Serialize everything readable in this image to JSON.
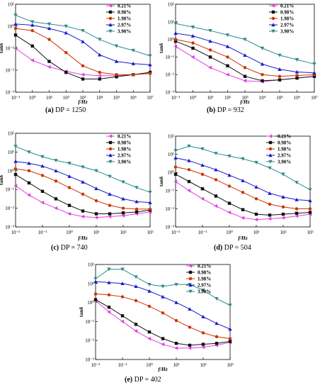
{
  "chart_data": [
    {
      "type": "line",
      "caption_letter": "(a)",
      "caption_text": "DP = 1250",
      "xlabel": "f/Hz",
      "ylabel": "tanδ",
      "x_ticks": [
        "10⁻¹",
        "10⁰",
        "10¹",
        "10²",
        "10³",
        "10⁴",
        "10⁵",
        "10⁶",
        "10⁷"
      ],
      "xlim_log10": [
        -1,
        7
      ],
      "x_tick_log10": [
        -1,
        0,
        1,
        2,
        3,
        4,
        5,
        6,
        7
      ],
      "y_ticks": [
        "10⁻³",
        "10⁻²",
        "10⁻¹",
        "10⁰",
        "10¹"
      ],
      "ylim_log10": [
        -3,
        1
      ],
      "y_tick_log10": [
        -3,
        -2,
        -1,
        0,
        1
      ],
      "series": [
        {
          "name": "0.21%",
          "color": "#e040e0",
          "marker": "triangle-left",
          "log10_x": [
            -1,
            0,
            1,
            2,
            3,
            4,
            5,
            6,
            7
          ],
          "log10_y": [
            -1.0,
            -1.55,
            -1.85,
            -2.05,
            -2.2,
            -2.25,
            -2.25,
            -2.2,
            -2.1
          ]
        },
        {
          "name": "0.98%",
          "color": "#111111",
          "marker": "square",
          "log10_x": [
            -1,
            0,
            1,
            2,
            3,
            4,
            5,
            6,
            7
          ],
          "log10_y": [
            -0.4,
            -0.9,
            -1.6,
            -2.1,
            -2.4,
            -2.4,
            -2.3,
            -2.2,
            -2.1
          ]
        },
        {
          "name": "1.98%",
          "color": "#cc3300",
          "marker": "circle",
          "log10_x": [
            -1,
            0,
            1,
            2,
            3,
            4,
            5,
            6,
            7
          ],
          "log10_y": [
            -0.1,
            -0.2,
            -0.6,
            -1.2,
            -1.8,
            -2.1,
            -2.2,
            -2.2,
            -2.15
          ]
        },
        {
          "name": "2.97%",
          "color": "#1a1acc",
          "marker": "triangle-up",
          "log10_x": [
            -1,
            0,
            1,
            2,
            3,
            4,
            5,
            6,
            7
          ],
          "log10_y": [
            0.1,
            0.05,
            -0.1,
            -0.3,
            -0.7,
            -1.3,
            -1.6,
            -1.7,
            -1.75
          ]
        },
        {
          "name": "3.90%",
          "color": "#2e8b8b",
          "marker": "triangle-down",
          "log10_x": [
            -1,
            0,
            1,
            2,
            3,
            4,
            5,
            6,
            7
          ],
          "log10_y": [
            0.5,
            0.2,
            0.1,
            0.0,
            -0.2,
            -0.6,
            -0.9,
            -1.1,
            -1.35
          ]
        }
      ]
    },
    {
      "type": "line",
      "caption_letter": "(b)",
      "caption_text": "DP = 932",
      "xlabel": "f/Hz",
      "ylabel": "tanδ",
      "x_ticks": [
        "10⁻¹",
        "10⁰",
        "10¹",
        "10²",
        "10³",
        "10⁴",
        "10⁵",
        "10⁶",
        "10⁷"
      ],
      "xlim_log10": [
        -1,
        7
      ],
      "x_tick_log10": [
        -1,
        0,
        1,
        2,
        3,
        4,
        5,
        6,
        7
      ],
      "y_ticks": [
        "10⁻³",
        "10⁻²",
        "10⁻¹",
        "10⁰",
        "10¹",
        "10²"
      ],
      "ylim_log10": [
        -3,
        2
      ],
      "y_tick_log10": [
        -3,
        -2,
        -1,
        0,
        1,
        2
      ],
      "series": [
        {
          "name": "0.21%",
          "color": "#e040e0",
          "marker": "triangle-left",
          "log10_x": [
            -1,
            0,
            1,
            2,
            3,
            4,
            5,
            6,
            7
          ],
          "log10_y": [
            -0.4,
            -1.0,
            -1.6,
            -2.0,
            -2.35,
            -2.4,
            -2.3,
            -2.2,
            -2.1
          ]
        },
        {
          "name": "0.98%",
          "color": "#111111",
          "marker": "square",
          "log10_x": [
            -1,
            0,
            1,
            2,
            3,
            4,
            5,
            6,
            7
          ],
          "log10_y": [
            -0.1,
            -0.5,
            -1.0,
            -1.5,
            -2.1,
            -2.35,
            -2.3,
            -2.2,
            -2.1
          ]
        },
        {
          "name": "1.98%",
          "color": "#cc3300",
          "marker": "circle",
          "log10_x": [
            -1,
            0,
            1,
            2,
            3,
            4,
            5,
            6,
            7
          ],
          "log10_y": [
            0.0,
            -0.2,
            -0.6,
            -1.0,
            -1.6,
            -2.0,
            -2.1,
            -2.05,
            -2.0
          ]
        },
        {
          "name": "2.97%",
          "color": "#1a1acc",
          "marker": "triangle-up",
          "log10_x": [
            -1,
            0,
            1,
            2,
            3,
            4,
            5,
            6,
            7
          ],
          "log10_y": [
            0.35,
            0.2,
            -0.1,
            -0.4,
            -0.9,
            -1.4,
            -1.7,
            -1.85,
            -1.9
          ]
        },
        {
          "name": "3.90%",
          "color": "#2e8b8b",
          "marker": "triangle-down",
          "log10_x": [
            -1,
            0,
            1,
            2,
            3,
            4,
            5,
            6,
            7
          ],
          "log10_y": [
            0.9,
            0.7,
            0.5,
            0.25,
            0.0,
            -0.5,
            -0.9,
            -1.15,
            -1.4
          ]
        }
      ]
    },
    {
      "type": "line",
      "caption_letter": "(c)",
      "caption_text": "DP = 740",
      "xlabel": "f/Hz",
      "ylabel": "tanδ",
      "x_ticks": [
        "10⁻²",
        "10⁻¹",
        "10⁰",
        "10¹",
        "10²",
        "10³"
      ],
      "xlim_log10": [
        -2,
        3
      ],
      "x_tick_log10": [
        -2,
        -1,
        0,
        1,
        2,
        3
      ],
      "y_ticks": [
        "10⁻³",
        "10⁻²",
        "10⁻¹",
        "10⁰",
        "10¹",
        "10²"
      ],
      "ylim_log10": [
        -3,
        2
      ],
      "y_tick_log10": [
        -3,
        -2,
        -1,
        0,
        1,
        2
      ],
      "series": [
        {
          "name": "0.21%",
          "color": "#e040e0",
          "marker": "triangle-left",
          "log10_x": [
            -2,
            -1.5,
            -1,
            -0.5,
            0,
            0.5,
            1,
            1.5,
            2,
            2.5,
            3
          ],
          "log10_y": [
            -0.8,
            -1.3,
            -1.7,
            -2.0,
            -2.3,
            -2.45,
            -2.5,
            -2.45,
            -2.4,
            -2.3,
            -2.2
          ]
        },
        {
          "name": "0.98%",
          "color": "#111111",
          "marker": "square",
          "log10_x": [
            -2,
            -1.5,
            -1,
            -0.5,
            0,
            0.5,
            1,
            1.5,
            2,
            2.5,
            3
          ],
          "log10_y": [
            -0.2,
            -0.65,
            -1.1,
            -1.5,
            -1.85,
            -2.15,
            -2.3,
            -2.3,
            -2.25,
            -2.2,
            -2.1
          ]
        },
        {
          "name": "1.98%",
          "color": "#cc3300",
          "marker": "circle",
          "log10_x": [
            -2,
            -1.5,
            -1,
            -0.5,
            0,
            0.5,
            1,
            1.5,
            2,
            2.5,
            3
          ],
          "log10_y": [
            0.1,
            0.0,
            -0.25,
            -0.55,
            -0.9,
            -1.25,
            -1.6,
            -1.85,
            -2.0,
            -2.05,
            -2.05
          ]
        },
        {
          "name": "2.97%",
          "color": "#1a1acc",
          "marker": "triangle-up",
          "log10_x": [
            -2,
            -1.5,
            -1,
            -0.5,
            0,
            0.5,
            1,
            1.5,
            2,
            2.5,
            3
          ],
          "log10_y": [
            0.5,
            0.4,
            0.25,
            0.0,
            -0.3,
            -0.6,
            -0.95,
            -1.25,
            -1.5,
            -1.65,
            -1.7
          ]
        },
        {
          "name": "3.90%",
          "color": "#2e8b8b",
          "marker": "triangle-down",
          "log10_x": [
            -2,
            -1.5,
            -1,
            -0.5,
            0,
            0.5,
            1,
            1.5,
            2,
            2.5,
            3
          ],
          "log10_y": [
            1.3,
            1.0,
            0.75,
            0.55,
            0.4,
            0.2,
            0.0,
            -0.3,
            -0.6,
            -0.9,
            -1.15
          ]
        }
      ]
    },
    {
      "type": "line",
      "caption_letter": "(d)",
      "caption_text": "DP = 504",
      "xlabel": "f/Hz",
      "ylabel": "tanδ",
      "x_ticks": [
        "10⁻²",
        "10⁻¹",
        "10⁰",
        "10¹",
        "10²",
        "10³"
      ],
      "xlim_log10": [
        -2,
        3
      ],
      "x_tick_log10": [
        -2,
        -1,
        0,
        1,
        2,
        3
      ],
      "y_ticks": [
        "10⁻³",
        "10⁻²",
        "10⁻¹",
        "10⁰",
        "10¹",
        "10²"
      ],
      "ylim_log10": [
        -3,
        2
      ],
      "y_tick_log10": [
        -3,
        -2,
        -1,
        0,
        1,
        2
      ],
      "series": [
        {
          "name": "0.21%",
          "color": "#e040e0",
          "marker": "triangle-left",
          "log10_x": [
            -2,
            -1.5,
            -1,
            -0.5,
            0,
            0.5,
            1,
            1.5,
            2,
            2.5,
            3
          ],
          "log10_y": [
            -0.5,
            -1.0,
            -1.45,
            -1.85,
            -2.2,
            -2.5,
            -2.6,
            -2.55,
            -2.5,
            -2.4,
            -2.3
          ]
        },
        {
          "name": "0.98%",
          "color": "#111111",
          "marker": "square",
          "log10_x": [
            -2,
            -1.5,
            -1,
            -0.5,
            0,
            0.5,
            1,
            1.5,
            2,
            2.5,
            3
          ],
          "log10_y": [
            -0.1,
            -0.5,
            -0.9,
            -1.3,
            -1.7,
            -2.05,
            -2.3,
            -2.35,
            -2.3,
            -2.25,
            -2.2
          ]
        },
        {
          "name": "1.98%",
          "color": "#cc3300",
          "marker": "circle",
          "log10_x": [
            -2,
            -1.5,
            -1,
            -0.5,
            0,
            0.5,
            1,
            1.5,
            2,
            2.5,
            3
          ],
          "log10_y": [
            0.3,
            0.15,
            -0.1,
            -0.4,
            -0.75,
            -1.1,
            -1.45,
            -1.75,
            -1.9,
            -2.0,
            -2.0
          ]
        },
        {
          "name": "2.97%",
          "color": "#1a1acc",
          "marker": "triangle-up",
          "log10_x": [
            -2,
            -1.5,
            -1,
            -0.5,
            0,
            0.5,
            1,
            1.5,
            2,
            2.5,
            3
          ],
          "log10_y": [
            0.8,
            0.65,
            0.4,
            0.15,
            -0.15,
            -0.45,
            -0.8,
            -1.15,
            -1.35,
            -1.5,
            -1.55
          ]
        },
        {
          "name": "3.90%",
          "color": "#2e8b8b",
          "marker": "triangle-down",
          "log10_x": [
            -2,
            -1.5,
            -1,
            -0.5,
            0,
            0.5,
            1,
            1.5,
            2,
            2.5,
            3
          ],
          "log10_y": [
            1.2,
            1.45,
            1.3,
            1.05,
            0.9,
            0.75,
            0.55,
            0.25,
            -0.1,
            -0.55,
            -0.95
          ]
        }
      ]
    },
    {
      "type": "line",
      "caption_letter": "(e)",
      "caption_text": "DP = 402",
      "xlabel": "f/Hz",
      "ylabel": "tanδ",
      "x_ticks": [
        "10⁻²",
        "10⁻¹",
        "10⁰",
        "10¹",
        "10²",
        "10³"
      ],
      "xlim_log10": [
        -2,
        3
      ],
      "x_tick_log10": [
        -2,
        -1,
        0,
        1,
        2,
        3
      ],
      "y_ticks": [
        "10⁻³",
        "10⁻²",
        "10⁻¹",
        "10⁰",
        "10¹",
        "10²"
      ],
      "ylim_log10": [
        -3,
        2
      ],
      "y_tick_log10": [
        -3,
        -2,
        -1,
        0,
        1,
        2
      ],
      "series": [
        {
          "name": "0.21%",
          "color": "#e040e0",
          "marker": "triangle-left",
          "log10_x": [
            -2,
            -1.5,
            -1,
            -0.5,
            0,
            0.5,
            1,
            1.5,
            2,
            2.5,
            3
          ],
          "log10_y": [
            0.1,
            -0.5,
            -1.0,
            -1.5,
            -1.9,
            -2.2,
            -2.4,
            -2.4,
            -2.35,
            -2.25,
            -2.1
          ]
        },
        {
          "name": "0.98%",
          "color": "#111111",
          "marker": "square",
          "log10_x": [
            -2,
            -1.5,
            -1,
            -0.5,
            0,
            0.5,
            1,
            1.5,
            2,
            2.5,
            3
          ],
          "log10_y": [
            0.15,
            -0.25,
            -0.7,
            -1.15,
            -1.55,
            -1.9,
            -2.15,
            -2.25,
            -2.2,
            -2.15,
            -2.05
          ]
        },
        {
          "name": "1.98%",
          "color": "#cc3300",
          "marker": "circle",
          "log10_x": [
            -2,
            -1.5,
            -1,
            -0.5,
            0,
            0.5,
            1,
            1.5,
            2,
            2.5,
            3
          ],
          "log10_y": [
            0.45,
            0.4,
            0.3,
            0.1,
            -0.2,
            -0.55,
            -0.95,
            -1.3,
            -1.6,
            -1.8,
            -1.9
          ]
        },
        {
          "name": "2.97%",
          "color": "#1a1acc",
          "marker": "triangle-up",
          "log10_x": [
            -2,
            -1.5,
            -1,
            -0.5,
            0,
            0.5,
            1,
            1.5,
            2,
            2.5,
            3
          ],
          "log10_y": [
            1.1,
            1.05,
            1.0,
            0.85,
            0.6,
            0.3,
            0.0,
            -0.35,
            -0.75,
            -1.1,
            -1.4
          ]
        },
        {
          "name": "3.90%",
          "color": "#2e8b8b",
          "marker": "triangle-down",
          "log10_x": [
            -2,
            -1.5,
            -1,
            -0.5,
            0,
            0.5,
            1,
            1.5,
            2,
            2.5,
            3
          ],
          "log10_y": [
            1.25,
            1.75,
            1.75,
            1.35,
            0.95,
            0.85,
            0.95,
            0.95,
            0.65,
            0.2,
            -0.15
          ]
        }
      ]
    }
  ]
}
